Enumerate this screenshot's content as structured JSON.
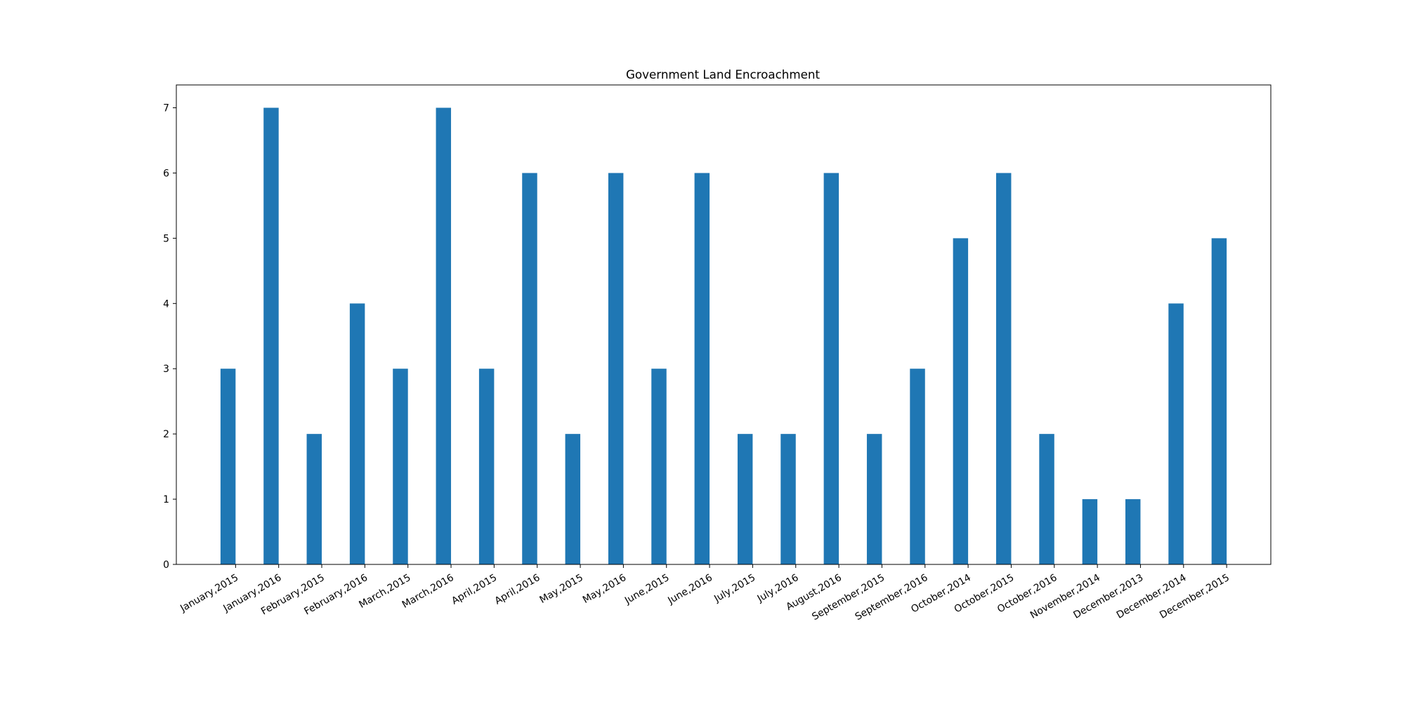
{
  "chart_data": {
    "type": "bar",
    "title": "Government Land Encroachment",
    "xlabel": "",
    "ylabel": "",
    "ylim": [
      0,
      7.35
    ],
    "yticks": [
      0,
      1,
      2,
      3,
      4,
      5,
      6,
      7
    ],
    "grid": false,
    "legend": "none",
    "bar_color": "#1f77b4",
    "categories": [
      "January,2015",
      "January,2016",
      "February,2015",
      "February,2016",
      "March,2015",
      "March,2016",
      "April,2015",
      "April,2016",
      "May,2015",
      "May,2016",
      "June,2015",
      "June,2016",
      "July,2015",
      "July,2016",
      "August,2016",
      "September,2015",
      "September,2016",
      "October,2014",
      "October,2015",
      "October,2016",
      "November,2014",
      "December,2013",
      "December,2014",
      "December,2015"
    ],
    "values": [
      3,
      7,
      2,
      4,
      3,
      7,
      3,
      6,
      2,
      6,
      3,
      6,
      2,
      2,
      6,
      2,
      3,
      5,
      6,
      2,
      1,
      1,
      4,
      5
    ]
  }
}
